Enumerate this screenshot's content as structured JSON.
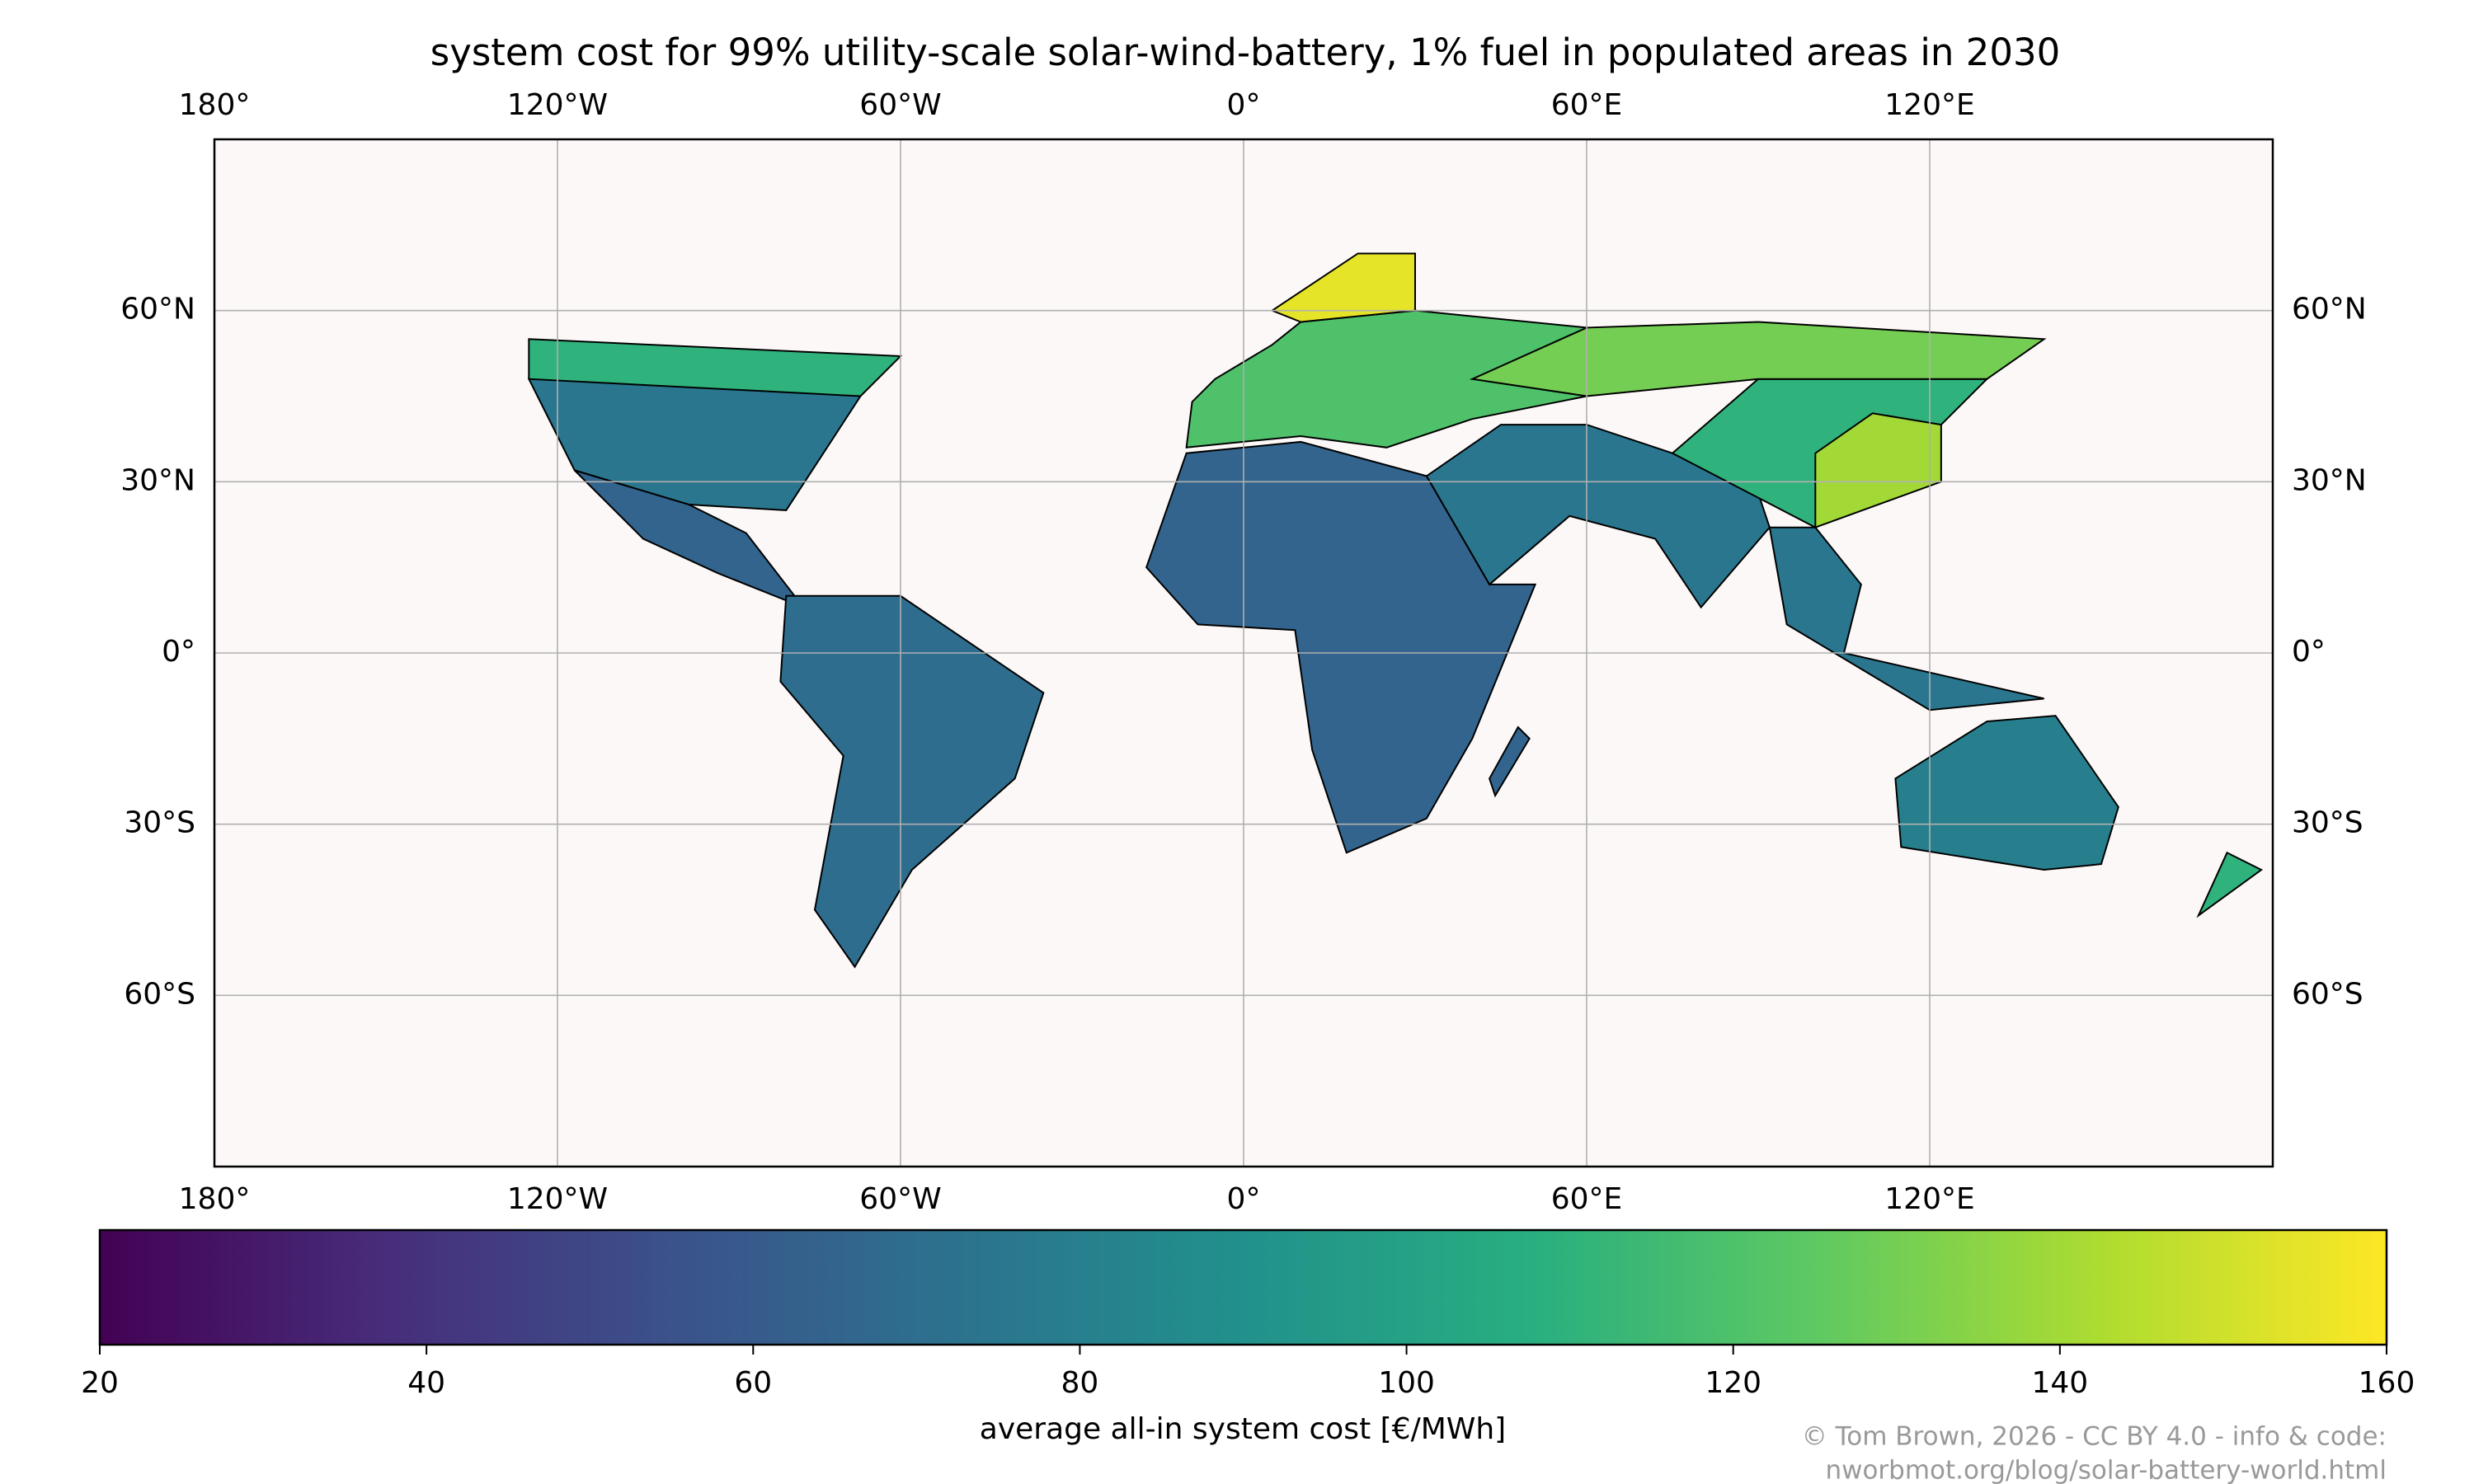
{
  "chart_data": {
    "type": "map",
    "title": "system cost for 99% utility-scale solar-wind-battery, 1% fuel in populated areas in 2030",
    "xlim": [
      -180,
      180
    ],
    "ylim": [
      -90,
      90
    ],
    "xticks": [
      {
        "value": -180,
        "label": "180°"
      },
      {
        "value": -120,
        "label": "120°W"
      },
      {
        "value": -60,
        "label": "60°W"
      },
      {
        "value": 0,
        "label": "0°"
      },
      {
        "value": 60,
        "label": "60°E"
      },
      {
        "value": 120,
        "label": "120°E"
      }
    ],
    "yticks": [
      {
        "value": 60,
        "label": "60°N"
      },
      {
        "value": 30,
        "label": "30°N"
      },
      {
        "value": 0,
        "label": "0°"
      },
      {
        "value": -30,
        "label": "30°S"
      },
      {
        "value": -60,
        "label": "60°S"
      }
    ],
    "grid": true,
    "regions": [
      {
        "lon": [
          -125,
          -95,
          -67,
          -80,
          -97,
          -117
        ],
        "lat": [
          48,
          49,
          45,
          25,
          26,
          32
        ],
        "value": 75
      },
      {
        "lon": [
          -125,
          -60,
          -67,
          -125
        ],
        "lat": [
          55,
          52,
          45,
          48
        ],
        "value": 110
      },
      {
        "lon": [
          -117,
          -97,
          -87,
          -77,
          -92,
          -105
        ],
        "lat": [
          32,
          26,
          21,
          8,
          14,
          20
        ],
        "value": 65
      },
      {
        "lon": [
          -80,
          -60,
          -35,
          -40,
          -58,
          -68,
          -75,
          -70,
          -81
        ],
        "lat": [
          10,
          10,
          -7,
          -22,
          -38,
          -55,
          -45,
          -18,
          -5
        ],
        "value": 70
      },
      {
        "lon": [
          -17,
          -10,
          10,
          32,
          43,
          51,
          40,
          32,
          18,
          12,
          9,
          -8
        ],
        "lat": [
          15,
          35,
          37,
          31,
          12,
          12,
          -15,
          -29,
          -35,
          -17,
          4,
          5
        ],
        "value": 65
      },
      {
        "lon": [
          44,
          50,
          48,
          43
        ],
        "lat": [
          -25,
          -15,
          -13,
          -22
        ],
        "value": 65
      },
      {
        "lon": [
          32,
          45,
          60,
          75,
          90,
          92,
          80,
          72,
          57,
          43
        ],
        "lat": [
          31,
          40,
          40,
          35,
          28,
          22,
          8,
          20,
          24,
          12
        ],
        "value": 75
      },
      {
        "lon": [
          75,
          100,
          122,
          130,
          90
        ],
        "lat": [
          35,
          22,
          40,
          48,
          48
        ],
        "value": 110
      },
      {
        "lon": [
          100,
          122,
          122,
          110,
          100
        ],
        "lat": [
          22,
          30,
          40,
          42,
          35
        ],
        "value": 140
      },
      {
        "lon": [
          -10,
          -9,
          -5,
          5,
          10,
          30,
          60,
          60,
          40,
          25,
          10
        ],
        "lat": [
          36,
          44,
          48,
          54,
          58,
          60,
          57,
          45,
          41,
          36,
          38
        ],
        "value": 120
      },
      {
        "lon": [
          5,
          10,
          30,
          30,
          20
        ],
        "lat": [
          60,
          58,
          60,
          70,
          70
        ],
        "value": 155
      },
      {
        "lon": [
          40,
          60,
          90,
          130,
          140,
          90,
          60
        ],
        "lat": [
          48,
          45,
          48,
          48,
          55,
          58,
          57
        ],
        "value": 130
      },
      {
        "lon": [
          92,
          100,
          108,
          105,
          140,
          120,
          95
        ],
        "lat": [
          22,
          22,
          12,
          0,
          -8,
          -10,
          5
        ],
        "value": 75
      },
      {
        "lon": [
          114,
          130,
          142,
          153,
          150,
          140,
          115
        ],
        "lat": [
          -22,
          -12,
          -11,
          -27,
          -37,
          -38,
          -34
        ],
        "value": 80
      },
      {
        "lon": [
          172,
          178,
          167
        ],
        "lat": [
          -35,
          -38,
          -46
        ],
        "value": 110
      }
    ],
    "colorbar": {
      "label": "average all-in system cost [€/MWh]",
      "lim": [
        20,
        160
      ],
      "ticks": [
        20,
        40,
        60,
        80,
        100,
        120,
        140,
        160
      ],
      "colormap": [
        "#440154",
        "#472d7b",
        "#3b528b",
        "#2c728e",
        "#21918c",
        "#28ae80",
        "#5ec962",
        "#addc30",
        "#fde725"
      ]
    },
    "credit": [
      "© Tom Brown, 2026 - CC BY 4.0 - info & code:",
      "nworbmot.org/blog/solar-battery-world.html"
    ]
  }
}
